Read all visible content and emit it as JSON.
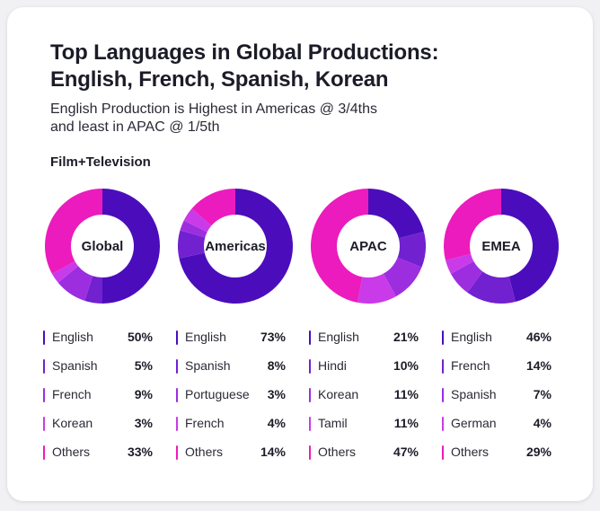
{
  "title_lines": [
    "Top Languages in Global Productions:",
    "English, French, Spanish, Korean"
  ],
  "subtitle_lines": [
    "English Production is Highest in Americas @ 3/4ths",
    "and least in APAC @ 1/5th"
  ],
  "section_label": "Film+Television",
  "chart_data": [
    {
      "type": "pie",
      "title": "Global",
      "categories": [
        "English",
        "Spanish",
        "French",
        "Korean",
        "Others"
      ],
      "values": [
        50,
        5,
        9,
        3,
        33
      ],
      "labels": [
        "50%",
        "5%",
        "9%",
        "3%",
        "33%"
      ],
      "colors": [
        "#4b0dbb",
        "#7121cf",
        "#9c2ee0",
        "#c93be8",
        "#ec1bbd"
      ]
    },
    {
      "type": "pie",
      "title": "Americas",
      "categories": [
        "English",
        "Spanish",
        "Portuguese",
        "French",
        "Others"
      ],
      "values": [
        73,
        8,
        3,
        4,
        14
      ],
      "labels": [
        "73%",
        "8%",
        "3%",
        "4%",
        "14%"
      ],
      "colors": [
        "#4b0dbb",
        "#7121cf",
        "#9c2ee0",
        "#c93be8",
        "#ec1bbd"
      ]
    },
    {
      "type": "pie",
      "title": "APAC",
      "categories": [
        "English",
        "Hindi",
        "Korean",
        "Tamil",
        "Others"
      ],
      "values": [
        21,
        10,
        11,
        11,
        47
      ],
      "labels": [
        "21%",
        "10%",
        "11%",
        "11%",
        "47%"
      ],
      "colors": [
        "#4b0dbb",
        "#7121cf",
        "#9c2ee0",
        "#c93be8",
        "#ec1bbd"
      ]
    },
    {
      "type": "pie",
      "title": "EMEA",
      "categories": [
        "English",
        "French",
        "Spanish",
        "German",
        "Others"
      ],
      "values": [
        46,
        14,
        7,
        4,
        29
      ],
      "labels": [
        "46%",
        "14%",
        "7%",
        "4%",
        "29%"
      ],
      "colors": [
        "#4b0dbb",
        "#7121cf",
        "#9c2ee0",
        "#c93be8",
        "#ec1bbd"
      ]
    }
  ]
}
